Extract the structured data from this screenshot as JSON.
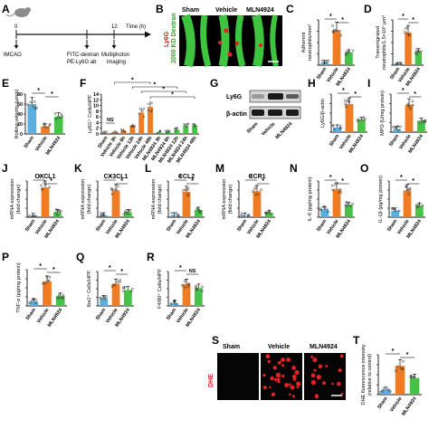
{
  "figure": {
    "panels": {
      "A": {
        "letter": "A",
        "time_label": "Time (h)",
        "timepoints": [
          "0",
          "11",
          "12"
        ],
        "events": [
          "tMCAO",
          "FITC-dextran",
          "PE-Ly6G ab",
          "Multiphoton",
          "imaging"
        ]
      },
      "B": {
        "letter": "B",
        "columns": [
          "Sham",
          "Vehicle",
          "MLN4924"
        ],
        "side_label_red": "Ly6G",
        "side_label_green": "2000 KD Dextran"
      },
      "C": {
        "letter": "C",
        "ylabel_1": "Adherent",
        "ylabel_2": "neutrophils/mm²",
        "sig": [
          "*",
          "*"
        ]
      },
      "D": {
        "letter": "D",
        "ylabel_1": "Transmigrated",
        "ylabel_2": "neutrophils/1.5×10⁶ µm³",
        "sig": [
          "*",
          "*"
        ]
      },
      "E": {
        "letter": "E",
        "ylabel": "Rolling velocity (µm/s)",
        "yticks": [
          "0",
          "20",
          "40",
          "60",
          "80"
        ],
        "sig": [
          "*",
          "*"
        ]
      },
      "F": {
        "letter": "F",
        "ylabel": "Ly6G⁺ Cells/HPF",
        "yticks": [
          "0",
          "2",
          "4",
          "6",
          "8",
          "10",
          "12",
          "14"
        ],
        "categories": [
          "Sham",
          "Vehicle 3h",
          "Vehicle 6h",
          "Vehicle 12h",
          "Vehicle 24h",
          "Vehicle 48h",
          "MLN4924 3h",
          "MLN4924 6h",
          "MLN4924 12h",
          "MLN4924 24h",
          "MLN4924 48h"
        ],
        "ns": "NS",
        "sig": [
          "*",
          "*",
          "*",
          "*"
        ]
      },
      "G": {
        "letter": "G",
        "bands": [
          "Ly6G",
          "β-actin"
        ],
        "lanes": [
          "Sham",
          "Vehicle",
          "MLN4924"
        ]
      },
      "H": {
        "letter": "H",
        "ylabel": "Ly6G/β-actin",
        "sig": [
          "*",
          "*"
        ]
      },
      "I": {
        "letter": "I",
        "ylabel": "MPO (U/mg protein)",
        "sig": [
          "*",
          "*"
        ]
      },
      "J": {
        "letter": "J",
        "title": "CXCL1",
        "ylabel_1": "mRNA expression",
        "ylabel_2": "(fold change)",
        "sig": [
          "*",
          "*"
        ]
      },
      "K": {
        "letter": "K",
        "title": "CX3CL1",
        "ylabel_1": "mRNA expression",
        "ylabel_2": "(fold change)",
        "sig": [
          "*",
          "*"
        ]
      },
      "L": {
        "letter": "L",
        "title": "CCL2",
        "ylabel_1": "mRNA expression",
        "ylabel_2": "(fold change)",
        "sig": [
          "*",
          "*"
        ]
      },
      "M": {
        "letter": "M",
        "title": "CCR1",
        "ylabel_1": "mRNA expression",
        "ylabel_2": "(fold change)",
        "sig": [
          "*",
          "*"
        ]
      },
      "N": {
        "letter": "N",
        "ylabel": "IL-6 (pg/mg protein)",
        "sig": [
          "*",
          "*"
        ]
      },
      "O": {
        "letter": "O",
        "ylabel": "IL-1β (pg/mg protein)",
        "sig": [
          "*",
          "*"
        ]
      },
      "P": {
        "letter": "P",
        "ylabel": "TNF-α (pg/mg protein)",
        "sig": [
          "*",
          "*"
        ]
      },
      "Q": {
        "letter": "Q",
        "ylabel": "Iba1⁺ Cells/HPF",
        "sig": [
          "*",
          "*"
        ]
      },
      "R": {
        "letter": "R",
        "ylabel": "F4/80⁺ Cells/HPF",
        "sig": [
          "*"
        ],
        "ns": "NS"
      },
      "S": {
        "letter": "S",
        "columns": [
          "Sham",
          "Vehicle",
          "MLN4924"
        ],
        "side_label": "DHE"
      },
      "T": {
        "letter": "T",
        "ylabel_1": "DHE fluorescence intensity",
        "ylabel_2": "(relative to control)",
        "sig": [
          "*",
          "*"
        ]
      }
    },
    "group_labels": [
      "Sham",
      "Vehicle",
      "MLN4924"
    ],
    "colors": {
      "sham": "#5aafe0",
      "vehicle": "#ef7b22",
      "mln4924": "#46c246",
      "micro_green": "#3ec43e",
      "micro_red": "#e02424"
    }
  },
  "chart_data": [
    {
      "panel": "C",
      "type": "bar",
      "categories": [
        "Sham",
        "Vehicle",
        "MLN4924"
      ],
      "values": [
        0.05,
        0.78,
        0.28
      ]
    },
    {
      "panel": "D",
      "type": "bar",
      "categories": [
        "Sham",
        "Vehicle",
        "MLN4924"
      ],
      "values": [
        0.0,
        0.72,
        0.3
      ]
    },
    {
      "panel": "E",
      "type": "bar",
      "categories": [
        "Sham",
        "Vehicle",
        "MLN4924"
      ],
      "values": [
        60,
        15,
        35
      ],
      "ylim": [
        0,
        80
      ]
    },
    {
      "panel": "F",
      "type": "bar",
      "categories": [
        "Sham",
        "Vehicle 3h",
        "Vehicle 6h",
        "Vehicle 12h",
        "Vehicle 24h",
        "Vehicle 48h",
        "MLN4924 3h",
        "MLN4924 6h",
        "MLN4924 12h",
        "MLN4924 24h",
        "MLN4924 48h"
      ],
      "values": [
        0.3,
        0.5,
        1.2,
        3.0,
        7.5,
        9.5,
        0.5,
        0.9,
        1.5,
        3.0,
        3.0
      ],
      "ylim": [
        0,
        14
      ]
    },
    {
      "panel": "H",
      "type": "bar",
      "categories": [
        "Sham",
        "Vehicle",
        "MLN4924"
      ],
      "values": [
        0.12,
        0.74,
        0.32
      ]
    },
    {
      "panel": "I",
      "type": "bar",
      "categories": [
        "Sham",
        "Vehicle",
        "MLN4924"
      ],
      "values": [
        0.08,
        0.72,
        0.3
      ]
    },
    {
      "panel": "J",
      "type": "bar",
      "categories": [
        "Sham",
        "Vehicle",
        "MLN4924"
      ],
      "values": [
        0.03,
        0.82,
        0.14
      ]
    },
    {
      "panel": "K",
      "type": "bar",
      "categories": [
        "Sham",
        "Vehicle",
        "MLN4924"
      ],
      "values": [
        0.05,
        0.74,
        0.14
      ]
    },
    {
      "panel": "L",
      "type": "bar",
      "categories": [
        "Sham",
        "Vehicle",
        "MLN4924"
      ],
      "values": [
        0.05,
        0.7,
        0.2
      ]
    },
    {
      "panel": "M",
      "type": "bar",
      "categories": [
        "Sham",
        "Vehicle",
        "MLN4924"
      ],
      "values": [
        0.04,
        0.72,
        0.12
      ]
    },
    {
      "panel": "N",
      "type": "bar",
      "categories": [
        "Sham",
        "Vehicle",
        "MLN4924"
      ],
      "values": [
        0.22,
        0.78,
        0.34
      ]
    },
    {
      "panel": "O",
      "type": "bar",
      "categories": [
        "Sham",
        "Vehicle",
        "MLN4924"
      ],
      "values": [
        0.18,
        0.74,
        0.32
      ]
    },
    {
      "panel": "P",
      "type": "bar",
      "categories": [
        "Sham",
        "Vehicle",
        "MLN4924"
      ],
      "values": [
        0.12,
        0.68,
        0.28
      ]
    },
    {
      "panel": "Q",
      "type": "bar",
      "categories": [
        "Sham",
        "Vehicle",
        "MLN4924"
      ],
      "values": [
        0.22,
        0.64,
        0.46
      ]
    },
    {
      "panel": "R",
      "type": "bar",
      "categories": [
        "Sham",
        "Vehicle",
        "MLN4924"
      ],
      "values": [
        0.08,
        0.64,
        0.52
      ]
    },
    {
      "panel": "T",
      "type": "bar",
      "categories": [
        "Sham",
        "Vehicle",
        "MLN4924"
      ],
      "values": [
        0.12,
        0.72,
        0.42
      ]
    }
  ]
}
